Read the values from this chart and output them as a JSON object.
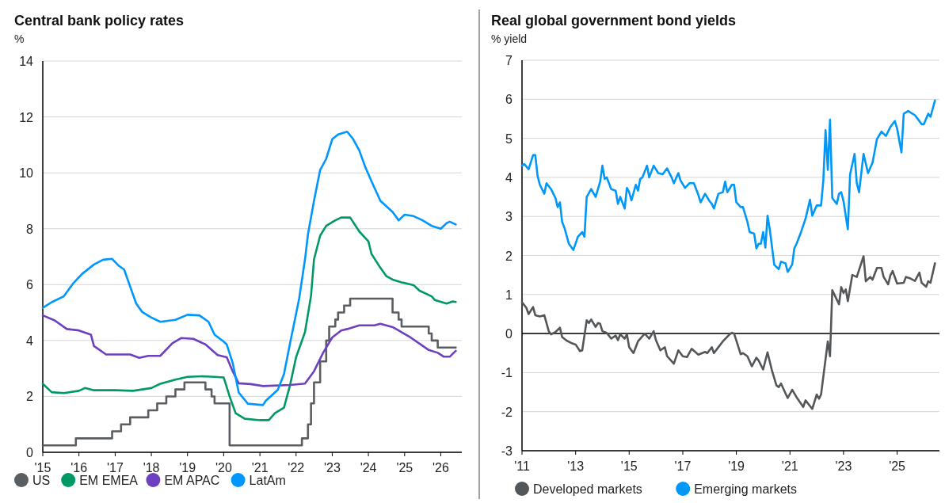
{
  "chart_data": [
    {
      "type": "line",
      "title": "Central bank policy rates",
      "ylabel": "%",
      "xlim": [
        "2015-01",
        "2026-08"
      ],
      "ylim": [
        0,
        14
      ],
      "yticks": [
        0,
        2,
        4,
        6,
        8,
        10,
        12,
        14
      ],
      "xticks": [
        {
          "value": "2015-01",
          "label": "'15"
        },
        {
          "value": "2016-01",
          "label": "'16"
        },
        {
          "value": "2017-01",
          "label": "'17"
        },
        {
          "value": "2018-01",
          "label": "'18"
        },
        {
          "value": "2019-01",
          "label": "'19"
        },
        {
          "value": "2020-01",
          "label": "'20"
        },
        {
          "value": "2021-01",
          "label": "'21"
        },
        {
          "value": "2022-01",
          "label": "'22"
        },
        {
          "value": "2023-01",
          "label": "'23"
        },
        {
          "value": "2024-01",
          "label": "'24"
        },
        {
          "value": "2025-01",
          "label": "'25"
        },
        {
          "value": "2026-01",
          "label": "'26"
        }
      ],
      "grid": "y",
      "legend": "bottom",
      "series": [
        {
          "name": "US",
          "type": "step",
          "color": "#5a5d61",
          "x": [
            "2015-01",
            "2015-12",
            "2016-12",
            "2017-03",
            "2017-06",
            "2017-12",
            "2018-03",
            "2018-06",
            "2018-09",
            "2018-12",
            "2019-07",
            "2019-09",
            "2019-10",
            "2020-03",
            "2022-03",
            "2022-05",
            "2022-06",
            "2022-07",
            "2022-09",
            "2022-11",
            "2022-12",
            "2023-02",
            "2023-03",
            "2023-05",
            "2023-07",
            "2024-09",
            "2024-11",
            "2024-12",
            "2025-09",
            "2025-10",
            "2025-12",
            "2026-06"
          ],
          "values": [
            0.25,
            0.5,
            0.75,
            1.0,
            1.25,
            1.5,
            1.75,
            2.0,
            2.25,
            2.5,
            2.25,
            2.0,
            1.75,
            0.25,
            0.5,
            1.0,
            1.75,
            2.5,
            3.25,
            4.0,
            4.5,
            4.75,
            5.0,
            5.25,
            5.5,
            5.0,
            4.75,
            4.5,
            4.25,
            4.0,
            3.75,
            3.75
          ]
        },
        {
          "name": "EM EMEA",
          "color": "#009966",
          "x": [
            "2015-01",
            "2015-04",
            "2015-08",
            "2016-01",
            "2016-03",
            "2016-06",
            "2017-01",
            "2017-07",
            "2018-01",
            "2018-04",
            "2018-09",
            "2019-01",
            "2019-06",
            "2019-10",
            "2020-01",
            "2020-03",
            "2020-05",
            "2020-08",
            "2021-01",
            "2021-04",
            "2021-06",
            "2021-09",
            "2021-11",
            "2022-01",
            "2022-04",
            "2022-06",
            "2022-07",
            "2022-09",
            "2022-11",
            "2023-02",
            "2023-04",
            "2023-07",
            "2023-10",
            "2024-01",
            "2024-02",
            "2024-05",
            "2024-07",
            "2024-09",
            "2024-12",
            "2025-04",
            "2025-06",
            "2025-10",
            "2025-11",
            "2026-03",
            "2026-05",
            "2026-06"
          ],
          "values": [
            2.45,
            2.15,
            2.12,
            2.2,
            2.3,
            2.22,
            2.22,
            2.2,
            2.3,
            2.45,
            2.6,
            2.7,
            2.72,
            2.7,
            2.68,
            2.0,
            1.4,
            1.2,
            1.15,
            1.15,
            1.4,
            1.6,
            2.4,
            3.4,
            4.3,
            5.6,
            6.9,
            7.75,
            8.1,
            8.3,
            8.4,
            8.4,
            7.9,
            7.55,
            7.1,
            6.6,
            6.3,
            6.18,
            6.08,
            5.98,
            5.78,
            5.58,
            5.45,
            5.32,
            5.4,
            5.38
          ]
        },
        {
          "name": "EM APAC",
          "color": "#6d40c0",
          "x": [
            "2015-01",
            "2015-05",
            "2015-09",
            "2016-01",
            "2016-05",
            "2016-06",
            "2016-10",
            "2017-06",
            "2017-09",
            "2017-12",
            "2018-04",
            "2018-08",
            "2018-11",
            "2019-03",
            "2019-07",
            "2019-11",
            "2020-02",
            "2020-04",
            "2020-06",
            "2020-10",
            "2021-02",
            "2021-11",
            "2022-04",
            "2022-07",
            "2022-10",
            "2023-01",
            "2023-04",
            "2023-06",
            "2023-10",
            "2024-03",
            "2024-05",
            "2024-09",
            "2024-11",
            "2025-03",
            "2025-09",
            "2025-12",
            "2026-02",
            "2026-04",
            "2026-06"
          ],
          "values": [
            4.9,
            4.72,
            4.41,
            4.36,
            4.21,
            3.8,
            3.5,
            3.5,
            3.38,
            3.45,
            3.45,
            3.9,
            4.09,
            4.06,
            3.86,
            3.48,
            3.4,
            2.9,
            2.47,
            2.44,
            2.37,
            2.41,
            2.46,
            2.9,
            3.56,
            4.11,
            4.36,
            4.41,
            4.54,
            4.54,
            4.6,
            4.48,
            4.36,
            4.11,
            3.66,
            3.56,
            3.42,
            3.42,
            3.63
          ]
        },
        {
          "name": "LatAm",
          "color": "#0096ff",
          "x": [
            "2015-01",
            "2015-04",
            "2015-08",
            "2015-11",
            "2016-02",
            "2016-06",
            "2016-09",
            "2016-12",
            "2017-02",
            "2017-04",
            "2017-07",
            "2017-08",
            "2017-10",
            "2018-01",
            "2018-04",
            "2018-09",
            "2019-01",
            "2019-05",
            "2019-08",
            "2019-10",
            "2020-01",
            "2020-02",
            "2020-04",
            "2020-06",
            "2020-09",
            "2021-02",
            "2021-03",
            "2021-07",
            "2021-09",
            "2021-11",
            "2022-02",
            "2022-04",
            "2022-05",
            "2022-07",
            "2022-09",
            "2022-11",
            "2023-01",
            "2023-03",
            "2023-06",
            "2023-08",
            "2023-10",
            "2023-12",
            "2024-02",
            "2024-05",
            "2024-09",
            "2024-11",
            "2025-01",
            "2025-04",
            "2025-07",
            "2025-10",
            "2026-01",
            "2026-03",
            "2026-04",
            "2026-06"
          ],
          "values": [
            5.17,
            5.37,
            5.58,
            6.03,
            6.38,
            6.72,
            6.89,
            6.92,
            6.69,
            6.54,
            5.63,
            5.32,
            5.02,
            4.82,
            4.67,
            4.74,
            4.92,
            4.9,
            4.67,
            4.21,
            3.96,
            3.86,
            3.2,
            2.14,
            1.74,
            1.69,
            1.84,
            2.24,
            2.8,
            3.9,
            5.5,
            6.9,
            7.8,
            9.0,
            10.1,
            10.5,
            11.2,
            11.37,
            11.47,
            11.2,
            10.8,
            10.2,
            9.7,
            9.0,
            8.6,
            8.3,
            8.5,
            8.45,
            8.3,
            8.1,
            8.0,
            8.2,
            8.25,
            8.15
          ]
        }
      ]
    },
    {
      "type": "line",
      "title": "Real global government bond yields",
      "ylabel": "% yield",
      "xlim": [
        "2011-01",
        "2026-08"
      ],
      "ylim": [
        -3,
        7
      ],
      "yticks": [
        -3,
        -2,
        -1,
        0,
        1,
        2,
        3,
        4,
        5,
        6,
        7
      ],
      "xticks": [
        {
          "value": "2011-01",
          "label": "'11"
        },
        {
          "value": "2013-01",
          "label": "'13"
        },
        {
          "value": "2015-01",
          "label": "'15"
        },
        {
          "value": "2017-01",
          "label": "'17"
        },
        {
          "value": "2019-01",
          "label": "'19"
        },
        {
          "value": "2021-01",
          "label": "'21"
        },
        {
          "value": "2023-01",
          "label": "'23"
        },
        {
          "value": "2025-01",
          "label": "'25"
        }
      ],
      "grid": "y",
      "legend": "bottom",
      "ref_lines": [
        {
          "axis": "y",
          "value": 0,
          "color": "#000000"
        }
      ],
      "series": [
        {
          "name": "Developed markets",
          "color": "#54575a",
          "x": [
            "2011-01",
            "2011-03",
            "2011-04",
            "2011-06",
            "2011-07",
            "2011-09",
            "2011-11",
            "2012-01",
            "2012-02",
            "2012-04",
            "2012-06",
            "2012-07",
            "2012-09",
            "2012-11",
            "2013-01",
            "2013-03",
            "2013-04",
            "2013-06",
            "2013-07",
            "2013-08",
            "2013-10",
            "2013-11",
            "2013-12",
            "2014-01",
            "2014-03",
            "2014-05",
            "2014-07",
            "2014-08",
            "2014-09",
            "2014-11",
            "2014-12",
            "2015-01",
            "2015-03",
            "2015-05",
            "2015-08",
            "2015-10",
            "2015-12",
            "2016-01",
            "2016-03",
            "2016-05",
            "2016-06",
            "2016-09",
            "2016-11",
            "2017-01",
            "2017-03",
            "2017-05",
            "2017-08",
            "2017-11",
            "2017-12",
            "2018-02",
            "2018-03",
            "2018-05",
            "2018-07",
            "2018-10",
            "2018-11",
            "2018-12",
            "2019-01",
            "2019-03",
            "2019-04",
            "2019-06",
            "2019-08",
            "2019-10",
            "2019-11",
            "2020-01",
            "2020-03",
            "2020-05",
            "2020-07",
            "2020-08",
            "2020-09",
            "2020-12",
            "2021-02",
            "2021-04",
            "2021-05",
            "2021-07",
            "2021-08",
            "2021-11",
            "2022-01",
            "2022-02",
            "2022-03",
            "2022-06",
            "2022-07",
            "2022-08",
            "2022-11",
            "2022-12",
            "2023-01",
            "2023-02",
            "2023-03",
            "2023-05",
            "2023-07",
            "2023-10",
            "2023-11",
            "2024-01",
            "2024-02",
            "2024-04",
            "2024-06",
            "2024-07",
            "2024-09",
            "2024-10",
            "2024-11",
            "2025-01",
            "2025-04",
            "2025-05",
            "2025-07",
            "2025-09",
            "2025-11",
            "2025-12",
            "2026-02",
            "2026-03",
            "2026-04",
            "2026-06"
          ],
          "values": [
            0.8,
            0.66,
            0.5,
            0.68,
            0.47,
            0.44,
            0.47,
            0.06,
            -0.02,
            0.04,
            0.15,
            -0.09,
            -0.18,
            -0.24,
            -0.28,
            -0.45,
            -0.43,
            0.34,
            0.27,
            0.36,
            0.17,
            0.27,
            0.25,
            0.06,
            0.02,
            -0.13,
            -0.05,
            -0.17,
            -0.02,
            -0.13,
            -0.02,
            -0.35,
            -0.5,
            -0.2,
            0.0,
            -0.13,
            0.06,
            -0.17,
            -0.43,
            -0.35,
            -0.58,
            -0.77,
            -0.43,
            -0.58,
            -0.6,
            -0.39,
            -0.54,
            -0.47,
            -0.5,
            -0.35,
            -0.5,
            -0.35,
            -0.2,
            -0.02,
            0.02,
            0.0,
            -0.18,
            -0.53,
            -0.5,
            -0.58,
            -0.84,
            -0.62,
            -0.69,
            -0.92,
            -0.48,
            -0.95,
            -1.33,
            -1.37,
            -1.28,
            -1.65,
            -1.44,
            -1.63,
            -1.71,
            -1.88,
            -1.71,
            -1.93,
            -1.56,
            -1.67,
            -1.56,
            -0.2,
            -0.58,
            1.11,
            0.75,
            1.19,
            1.04,
            1.13,
            0.83,
            1.5,
            1.45,
            1.98,
            1.34,
            1.45,
            1.38,
            1.68,
            1.68,
            1.45,
            1.26,
            1.49,
            1.6,
            1.28,
            1.3,
            1.45,
            1.41,
            1.35,
            1.56,
            1.3,
            1.2,
            1.34,
            1.3,
            1.8
          ]
        },
        {
          "name": "Emerging markets",
          "color": "#0098f8",
          "x": [
            "2011-01",
            "2011-02",
            "2011-04",
            "2011-06",
            "2011-07",
            "2011-08",
            "2011-09",
            "2011-11",
            "2011-12",
            "2012-02",
            "2012-04",
            "2012-05",
            "2012-06",
            "2012-07",
            "2012-08",
            "2012-10",
            "2012-12",
            "2013-02",
            "2013-04",
            "2013-05",
            "2013-06",
            "2013-08",
            "2013-10",
            "2013-12",
            "2014-01",
            "2014-02",
            "2014-03",
            "2014-05",
            "2014-07",
            "2014-08",
            "2014-09",
            "2014-11",
            "2014-12",
            "2015-01",
            "2015-02",
            "2015-04",
            "2015-05",
            "2015-06",
            "2015-07",
            "2015-09",
            "2015-10",
            "2015-12",
            "2016-02",
            "2016-04",
            "2016-06",
            "2016-08",
            "2016-09",
            "2016-11",
            "2016-12",
            "2017-02",
            "2017-04",
            "2017-06",
            "2017-08",
            "2017-09",
            "2017-11",
            "2018-01",
            "2018-02",
            "2018-03",
            "2018-05",
            "2018-07",
            "2018-08",
            "2018-09",
            "2018-11",
            "2018-12",
            "2019-01",
            "2019-03",
            "2019-04",
            "2019-06",
            "2019-07",
            "2019-09",
            "2019-10",
            "2019-11",
            "2019-12",
            "2020-01",
            "2020-02",
            "2020-03",
            "2020-04",
            "2020-06",
            "2020-08",
            "2020-09",
            "2020-11",
            "2020-12",
            "2021-02",
            "2021-03",
            "2021-04",
            "2021-06",
            "2021-08",
            "2021-10",
            "2021-11",
            "2022-01",
            "2022-03",
            "2022-04",
            "2022-05",
            "2022-06",
            "2022-07",
            "2022-08",
            "2022-10",
            "2022-11",
            "2022-12",
            "2023-01",
            "2023-03",
            "2023-04",
            "2023-06",
            "2023-07",
            "2023-08",
            "2023-10",
            "2023-12",
            "2024-02",
            "2024-04",
            "2024-06",
            "2024-08",
            "2024-10",
            "2024-12",
            "2025-01",
            "2025-03",
            "2025-04",
            "2025-06",
            "2025-09",
            "2025-11",
            "2025-12",
            "2026-01",
            "2026-03",
            "2026-04",
            "2026-06"
          ],
          "values": [
            4.3,
            4.34,
            4.21,
            4.57,
            4.57,
            4.04,
            3.81,
            3.58,
            3.85,
            3.7,
            3.47,
            3.24,
            3.36,
            2.86,
            2.71,
            2.3,
            2.14,
            2.48,
            2.6,
            2.48,
            3.5,
            3.7,
            3.5,
            3.89,
            4.3,
            3.96,
            4.0,
            3.7,
            3.66,
            3.32,
            3.5,
            3.2,
            3.73,
            3.62,
            3.41,
            3.81,
            3.66,
            3.96,
            4.0,
            4.3,
            4.0,
            4.3,
            4.11,
            4.08,
            4.23,
            4.0,
            3.85,
            4.11,
            3.92,
            3.73,
            3.85,
            3.85,
            3.55,
            3.36,
            3.58,
            3.39,
            3.32,
            3.2,
            3.58,
            3.62,
            3.89,
            3.62,
            3.81,
            3.81,
            3.36,
            3.24,
            3.24,
            2.86,
            2.6,
            2.56,
            2.18,
            2.3,
            2.3,
            2.6,
            2.2,
            3.02,
            2.67,
            1.76,
            1.65,
            1.84,
            1.8,
            1.58,
            1.77,
            2.18,
            2.3,
            2.6,
            2.94,
            3.43,
            3.02,
            3.28,
            3.28,
            3.92,
            5.21,
            4.19,
            5.48,
            3.47,
            3.32,
            3.58,
            3.62,
            3.39,
            2.67,
            4.08,
            4.6,
            3.85,
            3.62,
            4.6,
            4.11,
            4.38,
            4.98,
            5.17,
            5.06,
            5.29,
            5.44,
            5.25,
            4.64,
            5.63,
            5.7,
            5.59,
            5.44,
            5.36,
            5.36,
            5.63,
            5.55,
            5.97
          ]
        }
      ]
    }
  ]
}
